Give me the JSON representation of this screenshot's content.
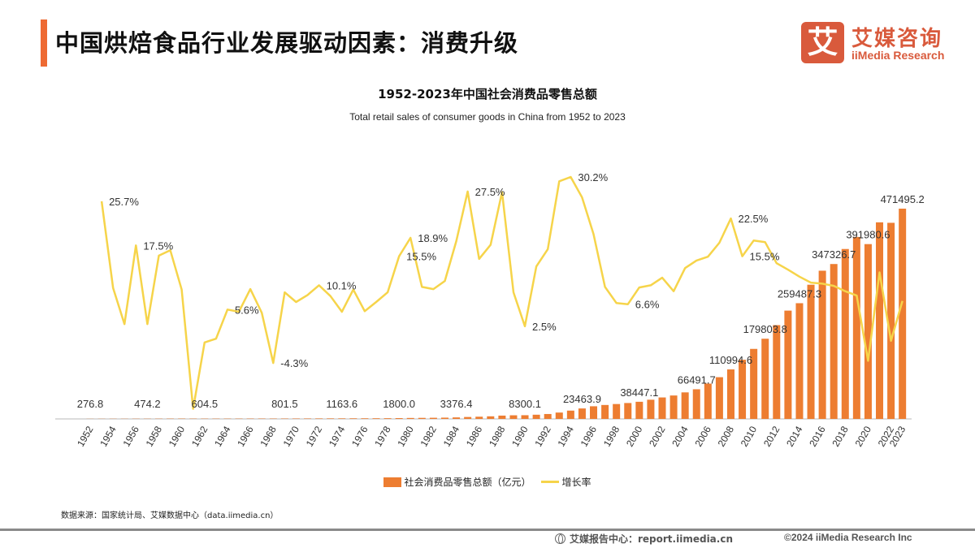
{
  "header": {
    "title": "中国烘焙食品行业发展驱动因素：消费升级",
    "logo": {
      "mark": "艾",
      "cn": "艾媒咨询",
      "en": "iiMedia Research"
    }
  },
  "colors": {
    "accent": "#ee6a33",
    "bar": "#ed7d31",
    "line": "#f6d44a",
    "logo": "#d95a3c"
  },
  "chart_data": {
    "type": "bar+line",
    "title": "1952-2023年中国社会消费品零售总额",
    "subtitle": "Total retail sales of consumer goods in China from 1952 to 2023",
    "x": [
      1952,
      1953,
      1954,
      1955,
      1956,
      1957,
      1958,
      1959,
      1960,
      1961,
      1962,
      1963,
      1964,
      1965,
      1966,
      1967,
      1968,
      1969,
      1970,
      1971,
      1972,
      1973,
      1974,
      1975,
      1976,
      1977,
      1978,
      1979,
      1980,
      1981,
      1982,
      1983,
      1984,
      1985,
      1986,
      1987,
      1988,
      1989,
      1990,
      1991,
      1992,
      1993,
      1994,
      1995,
      1996,
      1997,
      1998,
      1999,
      2000,
      2001,
      2002,
      2003,
      2004,
      2005,
      2006,
      2007,
      2008,
      2009,
      2010,
      2011,
      2012,
      2013,
      2014,
      2015,
      2016,
      2017,
      2018,
      2019,
      2020,
      2021,
      2022,
      2023
    ],
    "xtick_labels": [
      "1952",
      "1954",
      "1956",
      "1958",
      "1960",
      "1962",
      "1964",
      "1966",
      "1968",
      "1970",
      "1972",
      "1974",
      "1976",
      "1978",
      "1980",
      "1982",
      "1984",
      "1986",
      "1988",
      "1990",
      "1992",
      "1994",
      "1996",
      "1998",
      "2000",
      "2002",
      "2004",
      "2006",
      "2008",
      "2010",
      "2012",
      "2014",
      "2016",
      "2018",
      "2020",
      "2022",
      "2023"
    ],
    "series": [
      {
        "name": "社会消费品零售总额（亿元）",
        "type": "bar",
        "axis": "left",
        "values": [
          276.8,
          348.0,
          381.1,
          392.2,
          461.0,
          474.2,
          548.0,
          638.0,
          696.9,
          607.7,
          604.5,
          604.5,
          638.2,
          670.3,
          732.8,
          770.5,
          737.3,
          801.5,
          858.0,
          929.2,
          1023.3,
          1106.7,
          1163.6,
          1271.1,
          1339.4,
          1432.8,
          1558.6,
          1800.0,
          2140.0,
          2350.0,
          2570.0,
          2849.4,
          3376.4,
          4305.0,
          4950.0,
          5820.0,
          7440.0,
          8101.4,
          8300.1,
          9415.6,
          10993.7,
          14270.4,
          18622.9,
          23463.9,
          28360.2,
          31252.9,
          33378.1,
          35647.9,
          38447.1,
          43055.4,
          48135.9,
          52516.3,
          59501.0,
          66491.7,
          79145.2,
          93571.6,
          110994.6,
          132678.4,
          156998.4,
          179803.8,
          210307.0,
          242842.8,
          259487.3,
          300930.8,
          332316.3,
          347326.7,
          380986.9,
          408017.2,
          391980.6,
          440823.2,
          439732.5,
          471495.2
        ]
      },
      {
        "name": "增长率",
        "type": "line",
        "axis": "right",
        "unit": "%",
        "values": [
          null,
          25.7,
          9.6,
          2.9,
          17.5,
          2.9,
          15.6,
          16.6,
          9.3,
          -12.8,
          -0.5,
          0.2,
          5.6,
          5.2,
          9.4,
          5.0,
          -4.3,
          8.8,
          7.0,
          8.3,
          10.1,
          8.1,
          5.2,
          9.3,
          5.3,
          7.0,
          8.8,
          15.5,
          18.9,
          9.8,
          9.4,
          10.9,
          18.3,
          27.5,
          15.0,
          17.6,
          27.4,
          8.8,
          2.5,
          13.6,
          16.8,
          29.4,
          30.2,
          26.4,
          19.6,
          9.8,
          6.8,
          6.6,
          9.7,
          10.1,
          11.5,
          9.0,
          13.3,
          14.7,
          15.4,
          18.0,
          22.5,
          15.5,
          18.4,
          18.1,
          14.2,
          13.0,
          11.7,
          10.6,
          10.4,
          10.0,
          9.0,
          8.2,
          -3.9,
          12.5,
          -0.2,
          7.2
        ]
      }
    ],
    "bar_labels": [
      {
        "year": 1952,
        "text": "276.8"
      },
      {
        "year": 1957,
        "text": "474.2"
      },
      {
        "year": 1962,
        "text": "604.5"
      },
      {
        "year": 1969,
        "text": "801.5"
      },
      {
        "year": 1974,
        "text": "1163.6"
      },
      {
        "year": 1979,
        "text": "1800.0"
      },
      {
        "year": 1984,
        "text": "3376.4"
      },
      {
        "year": 1990,
        "text": "8300.1"
      },
      {
        "year": 1995,
        "text": "23463.9"
      },
      {
        "year": 2000,
        "text": "38447.1"
      },
      {
        "year": 2005,
        "text": "66491.7"
      },
      {
        "year": 2008,
        "text": "110994.6"
      },
      {
        "year": 2011,
        "text": "179803.8"
      },
      {
        "year": 2014,
        "text": "259487.3"
      },
      {
        "year": 2017,
        "text": "347326.7"
      },
      {
        "year": 2020,
        "text": "391980.6"
      },
      {
        "year": 2023,
        "text": "471495.2"
      }
    ],
    "line_labels": [
      {
        "year": 1953,
        "text": "25.7%"
      },
      {
        "year": 1956,
        "text": "17.5%"
      },
      {
        "year": 1964,
        "text": "5.6%"
      },
      {
        "year": 1968,
        "text": "-4.3%"
      },
      {
        "year": 1972,
        "text": "10.1%"
      },
      {
        "year": 1979,
        "text": "15.5%"
      },
      {
        "year": 1980,
        "text": "18.9%"
      },
      {
        "year": 1985,
        "text": "27.5%"
      },
      {
        "year": 1990,
        "text": "2.5%"
      },
      {
        "year": 1994,
        "text": "30.2%"
      },
      {
        "year": 1999,
        "text": "6.6%"
      },
      {
        "year": 2008,
        "text": "22.5%"
      },
      {
        "year": 2009,
        "text": "15.5%"
      }
    ],
    "legend_position": "bottom",
    "grid": false
  },
  "legend": {
    "bar": "社会消费品零售总额（亿元）",
    "line": "增长率"
  },
  "source": "数据来源：国家统计局、艾媒数据中心（data.iimedia.cn）",
  "footer": {
    "report": "艾媒报告中心：report.iimedia.cn",
    "copyright": "©2024 iiMedia Research Inc"
  }
}
